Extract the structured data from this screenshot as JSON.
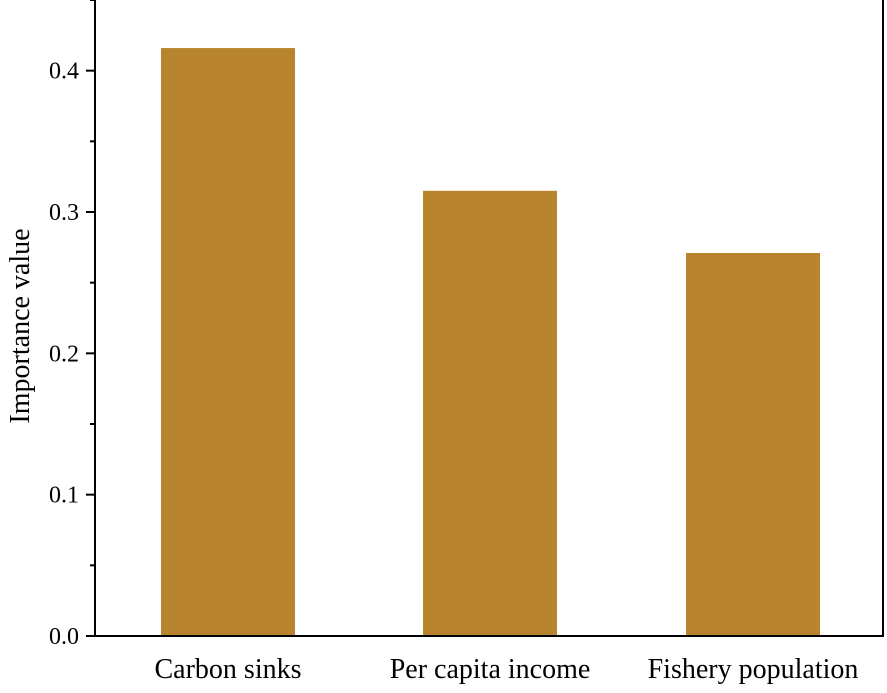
{
  "chart_data": {
    "type": "bar",
    "title": "",
    "xlabel": "",
    "ylabel": "Importance value",
    "categories": [
      "Carbon sinks",
      "Per capita income",
      "Fishery population"
    ],
    "values": [
      0.416,
      0.315,
      0.271
    ],
    "ylim": [
      0,
      0.45
    ],
    "yticks": [
      0.0,
      0.1,
      0.2,
      0.3,
      0.4
    ],
    "ytick_labels": [
      "0.0",
      "0.1",
      "0.2",
      "0.3",
      "0.4"
    ],
    "grid": false,
    "legend": "none",
    "bar_color": "#b8852e",
    "axis_color": "#000000"
  }
}
